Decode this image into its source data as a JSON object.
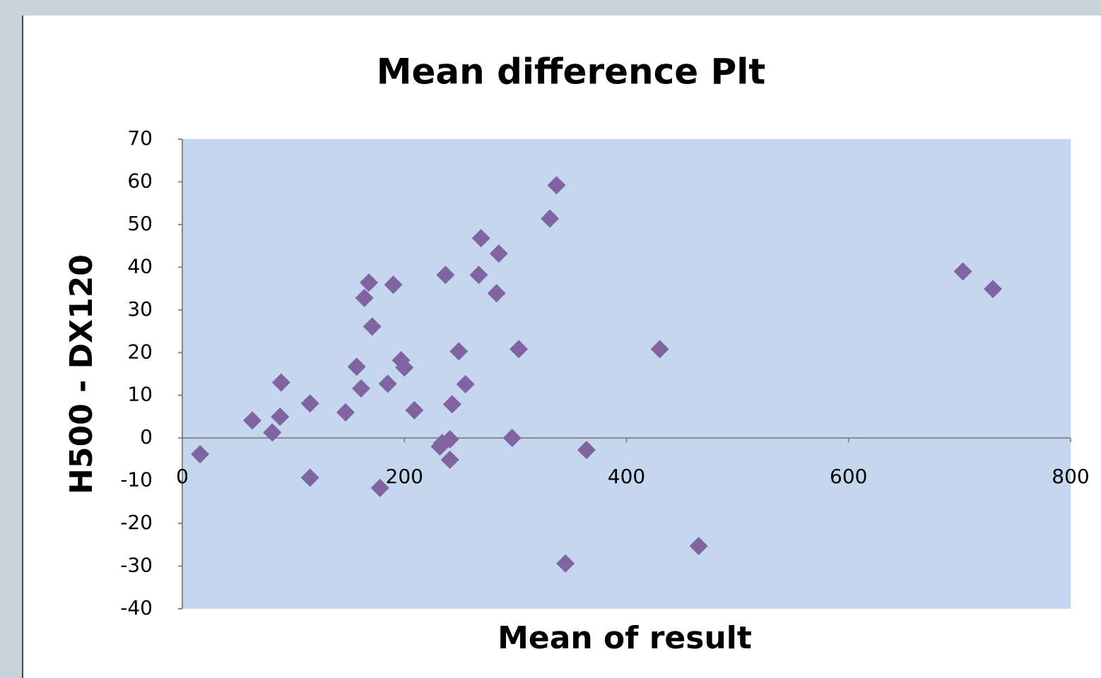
{
  "chart_data": {
    "type": "scatter",
    "title": "Mean difference Plt",
    "x_label": "Mean of result",
    "y_label": "H500 - DX120",
    "series": [
      {
        "name": "Plt",
        "color": "#8064a2",
        "x": [
          16,
          63,
          81,
          88,
          89,
          115,
          115,
          147,
          157,
          161,
          164,
          168,
          171,
          178,
          185,
          190,
          197,
          200,
          209,
          232,
          234,
          237,
          241,
          241,
          243,
          249,
          255,
          267,
          269,
          283,
          285,
          297,
          303,
          331,
          337,
          345,
          364,
          430,
          465,
          703,
          730
        ],
        "values": [
          -3.8,
          4.1,
          1.3,
          5,
          13,
          -9.3,
          8.1,
          6,
          16.7,
          11.6,
          32.8,
          36.4,
          26.1,
          -11.7,
          12.7,
          35.9,
          18.2,
          16.5,
          6.5,
          -2,
          -1.2,
          38.2,
          -0.3,
          -5.1,
          7.9,
          20.3,
          12.6,
          38.2,
          46.8,
          33.9,
          43.2,
          0,
          20.8,
          51.4,
          59.2,
          -29.4,
          -2.8,
          20.8,
          -25.3,
          39,
          34.9
        ]
      }
    ],
    "xlim": [
      0,
      800
    ],
    "xticks": [
      0,
      200,
      400,
      600,
      800
    ],
    "ylim": [
      -40,
      70
    ],
    "yticks": [
      -40,
      -30,
      -20,
      -10,
      0,
      10,
      20,
      30,
      40,
      50,
      60,
      70
    ],
    "plot_background": "#c5d7ee"
  }
}
